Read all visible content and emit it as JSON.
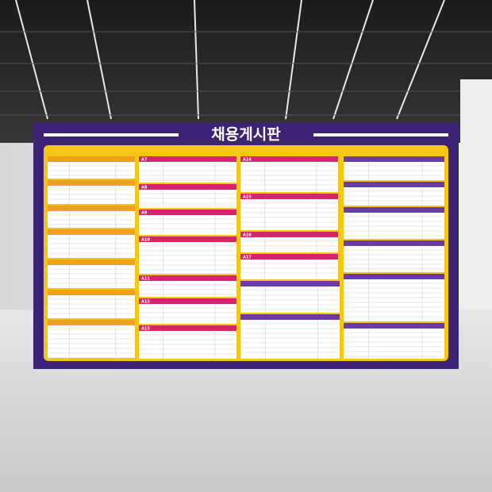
{
  "board": {
    "title": "채용게시판",
    "cards": [
      {
        "code": "A7"
      },
      {
        "code": "A8"
      },
      {
        "code": "A9"
      },
      {
        "code": "A10"
      },
      {
        "code": "A11"
      },
      {
        "code": "A12"
      },
      {
        "code": "A13"
      },
      {
        "code": "A14"
      },
      {
        "code": "A15"
      },
      {
        "code": "A16"
      },
      {
        "code": "A17"
      }
    ]
  }
}
